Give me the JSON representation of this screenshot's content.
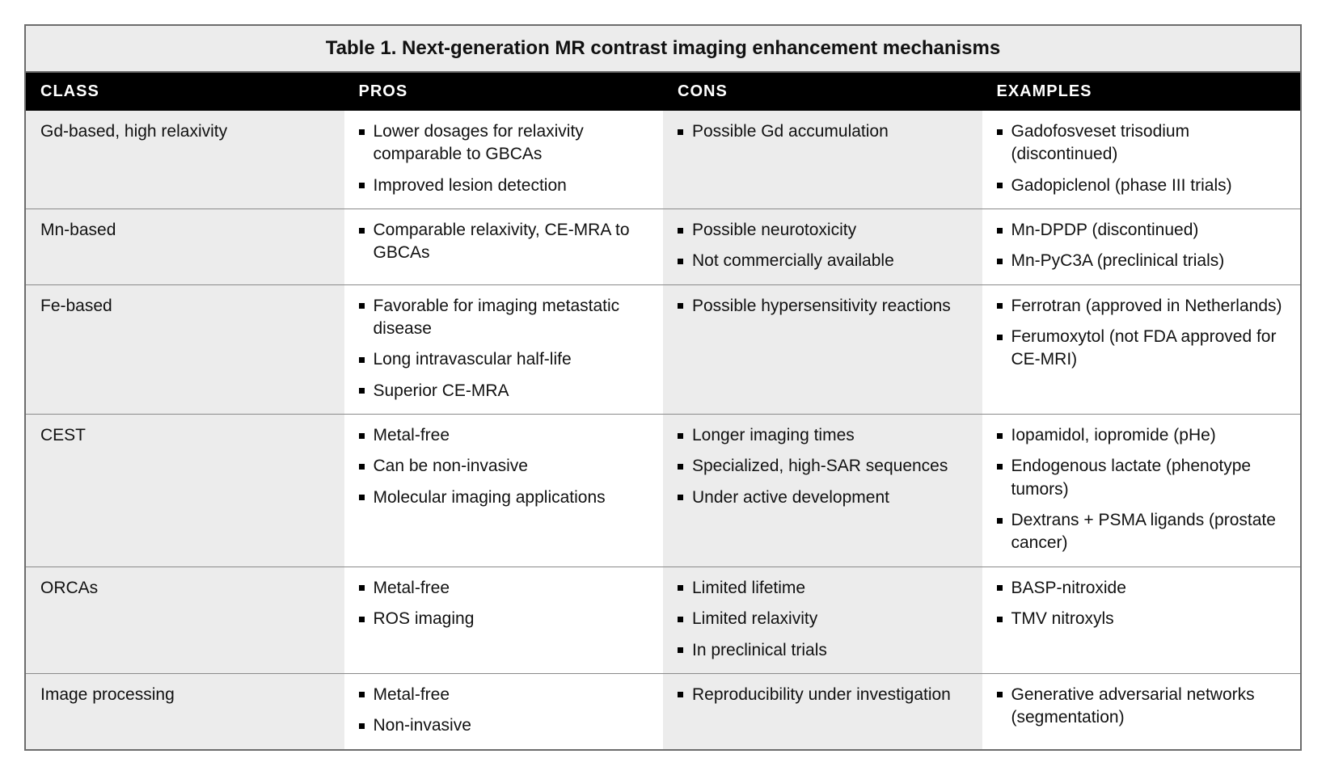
{
  "table": {
    "caption": "Table 1. Next-generation MR contrast imaging enhancement mechanisms",
    "columns": [
      "CLASS",
      "PROS",
      "CONS",
      "EXAMPLES"
    ],
    "col_widths_pct": [
      14,
      30,
      27,
      29
    ],
    "header_bg": "#000000",
    "header_fg": "#ffffff",
    "shade_bg": "#ececec",
    "plain_bg": "#ffffff",
    "border_color": "#6c6c6c",
    "row_border_color": "#8a8a8a",
    "caption_fontsize": 24,
    "header_fontsize": 20,
    "cell_fontsize": 21,
    "rows": [
      {
        "class": "Gd-based, high relaxivity",
        "pros": [
          "Lower dosages for relaxivity comparable to GBCAs",
          "Improved lesion detection"
        ],
        "cons": [
          "Possible Gd accumulation"
        ],
        "examples": [
          "Gadofosveset trisodium (discontinued)",
          "Gadopiclenol (phase III trials)"
        ]
      },
      {
        "class": "Mn-based",
        "pros": [
          "Comparable relaxivity, CE-MRA to GBCAs"
        ],
        "cons": [
          "Possible neurotoxicity",
          "Not commercially available"
        ],
        "examples": [
          "Mn-DPDP (discontinued)",
          "Mn-PyC3A (preclinical trials)"
        ]
      },
      {
        "class": "Fe-based",
        "pros": [
          "Favorable for imaging metastatic disease",
          "Long intravascular half-life",
          "Superior CE-MRA"
        ],
        "cons": [
          "Possible hypersensitivity reactions"
        ],
        "examples": [
          "Ferrotran (approved in Netherlands)",
          "Ferumoxytol (not FDA approved for CE-MRI)"
        ]
      },
      {
        "class": "CEST",
        "pros": [
          "Metal-free",
          "Can be non-invasive",
          "Molecular imaging applications"
        ],
        "cons": [
          "Longer imaging times",
          "Specialized, high-SAR sequences",
          "Under active development"
        ],
        "examples": [
          "Iopamidol, iopromide (pHe)",
          "Endogenous lactate (phenotype tumors)",
          "Dextrans + PSMA ligands (prostate cancer)"
        ]
      },
      {
        "class": "ORCAs",
        "pros": [
          "Metal-free",
          "ROS imaging"
        ],
        "cons": [
          "Limited lifetime",
          "Limited relaxivity",
          "In preclinical trials"
        ],
        "examples": [
          "BASP-nitroxide",
          "TMV nitroxyls"
        ]
      },
      {
        "class": "Image processing",
        "pros": [
          "Metal-free",
          "Non-invasive"
        ],
        "cons": [
          "Reproducibility under investigation"
        ],
        "examples": [
          "Generative adversarial networks (segmentation)"
        ]
      }
    ]
  }
}
